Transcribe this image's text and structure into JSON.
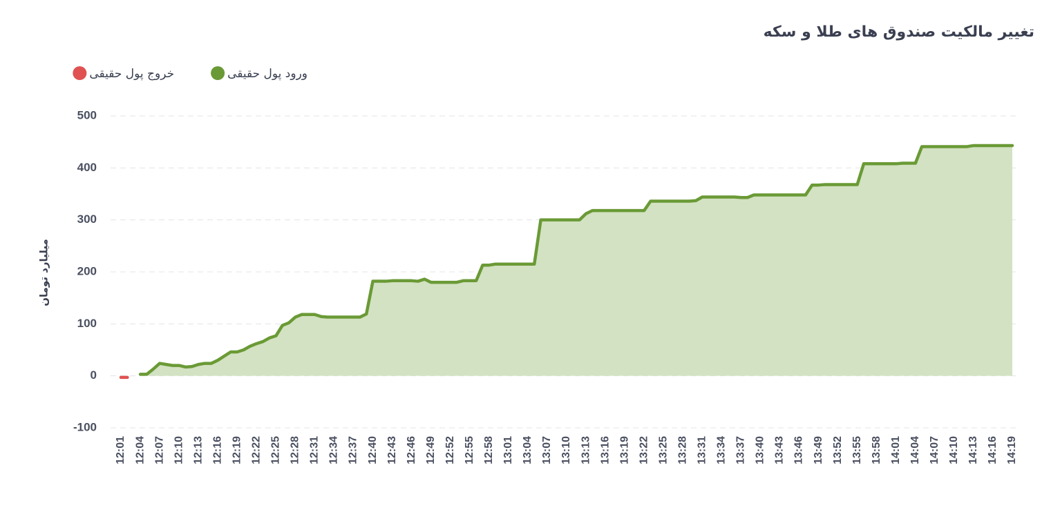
{
  "chart_data": {
    "type": "line",
    "title": "تغییر مالکیت صندوق های طلا و سکه",
    "y_label": "میلیارد تومان",
    "categories": [
      "12:01",
      null,
      null,
      "12:04",
      null,
      null,
      "12:07",
      null,
      null,
      "12:10",
      null,
      null,
      "12:13",
      null,
      null,
      "12:16",
      null,
      null,
      "12:19",
      null,
      null,
      "12:22",
      null,
      null,
      "12:25",
      null,
      null,
      "12:28",
      null,
      null,
      "12:31",
      null,
      null,
      "12:34",
      null,
      null,
      "12:37",
      null,
      null,
      "12:40",
      null,
      null,
      "12:43",
      null,
      null,
      "12:46",
      null,
      null,
      "12:49",
      null,
      null,
      "12:52",
      null,
      null,
      "12:55",
      null,
      null,
      "12:58",
      null,
      null,
      "13:01",
      null,
      null,
      "13:04",
      null,
      null,
      "13:07",
      null,
      null,
      "13:10",
      null,
      null,
      "13:13",
      null,
      null,
      "13:16",
      null,
      null,
      "13:19",
      null,
      null,
      "13:22",
      null,
      null,
      "13:25",
      null,
      null,
      "13:28",
      null,
      null,
      "13:31",
      null,
      null,
      "13:34",
      null,
      null,
      "13:37",
      null,
      null,
      "13:40",
      null,
      null,
      "13:43",
      null,
      null,
      "13:46",
      null,
      null,
      "13:49",
      null,
      null,
      "13:52",
      null,
      null,
      "13:55",
      null,
      null,
      "13:58",
      null,
      null,
      "14:01",
      null,
      null,
      "14:04",
      null,
      null,
      "14:07",
      null,
      null,
      "14:10",
      null,
      null,
      "14:13",
      null,
      null,
      "14:16",
      null,
      null,
      "14:19"
    ],
    "series": [
      {
        "name": "ورود پول حقیقی",
        "color": "#6a9a36",
        "fill": "#d3e2c2",
        "values": [
          null,
          null,
          null,
          3,
          3,
          13,
          24,
          22,
          20,
          20,
          17,
          18,
          22,
          24,
          24,
          30,
          38,
          46,
          46,
          50,
          57,
          62,
          66,
          73,
          77,
          97,
          102,
          113,
          118,
          118,
          118,
          114,
          113,
          113,
          113,
          113,
          113,
          113,
          119,
          182,
          182,
          182,
          183,
          183,
          183,
          183,
          182,
          186,
          180,
          180,
          180,
          180,
          180,
          183,
          183,
          183,
          213,
          213,
          215,
          215,
          215,
          215,
          215,
          215,
          215,
          300,
          300,
          300,
          300,
          300,
          300,
          300,
          312,
          318,
          318,
          318,
          318,
          318,
          318,
          318,
          318,
          318,
          336,
          336,
          336,
          336,
          336,
          336,
          336,
          337,
          344,
          344,
          344,
          344,
          344,
          344,
          343,
          343,
          348,
          348,
          348,
          348,
          348,
          348,
          348,
          348,
          348,
          367,
          367,
          368,
          368,
          368,
          368,
          368,
          368,
          408,
          408,
          408,
          408,
          408,
          408,
          409,
          409,
          409,
          441,
          441,
          441,
          441,
          441,
          441,
          441,
          441,
          443,
          443,
          443,
          443,
          443,
          443,
          443
        ]
      },
      {
        "name": "خروج پول حقیقی",
        "color": "#e05252",
        "values": [
          -3,
          -3,
          null,
          null,
          null,
          null,
          null,
          null,
          null,
          null,
          null,
          null,
          null,
          null,
          null,
          null,
          null,
          null,
          null,
          null,
          null,
          null,
          null,
          null,
          null,
          null,
          null,
          null,
          null,
          null,
          null,
          null,
          null,
          null,
          null,
          null,
          null,
          null,
          null,
          null,
          null,
          null,
          null,
          null,
          null,
          null,
          null,
          null,
          null,
          null,
          null,
          null,
          null,
          null,
          null,
          null,
          null,
          null,
          null,
          null,
          null,
          null,
          null,
          null,
          null,
          null,
          null,
          null,
          null,
          null,
          null,
          null,
          null,
          null,
          null,
          null,
          null,
          null,
          null,
          null,
          null,
          null,
          null,
          null,
          null,
          null,
          null,
          null,
          null,
          null,
          null,
          null,
          null,
          null,
          null,
          null,
          null,
          null,
          null,
          null,
          null,
          null,
          null,
          null,
          null,
          null,
          null,
          null,
          null,
          null,
          null,
          null,
          null,
          null,
          null,
          null,
          null,
          null,
          null,
          null,
          null,
          null,
          null,
          null,
          null,
          null,
          null,
          null,
          null,
          null,
          null,
          null,
          null,
          null,
          null,
          null,
          null,
          null,
          null
        ]
      }
    ],
    "ylim": [
      -100,
      500
    ],
    "yticks": [
      -100,
      0,
      100,
      200,
      300,
      400,
      500
    ],
    "grid": true
  }
}
